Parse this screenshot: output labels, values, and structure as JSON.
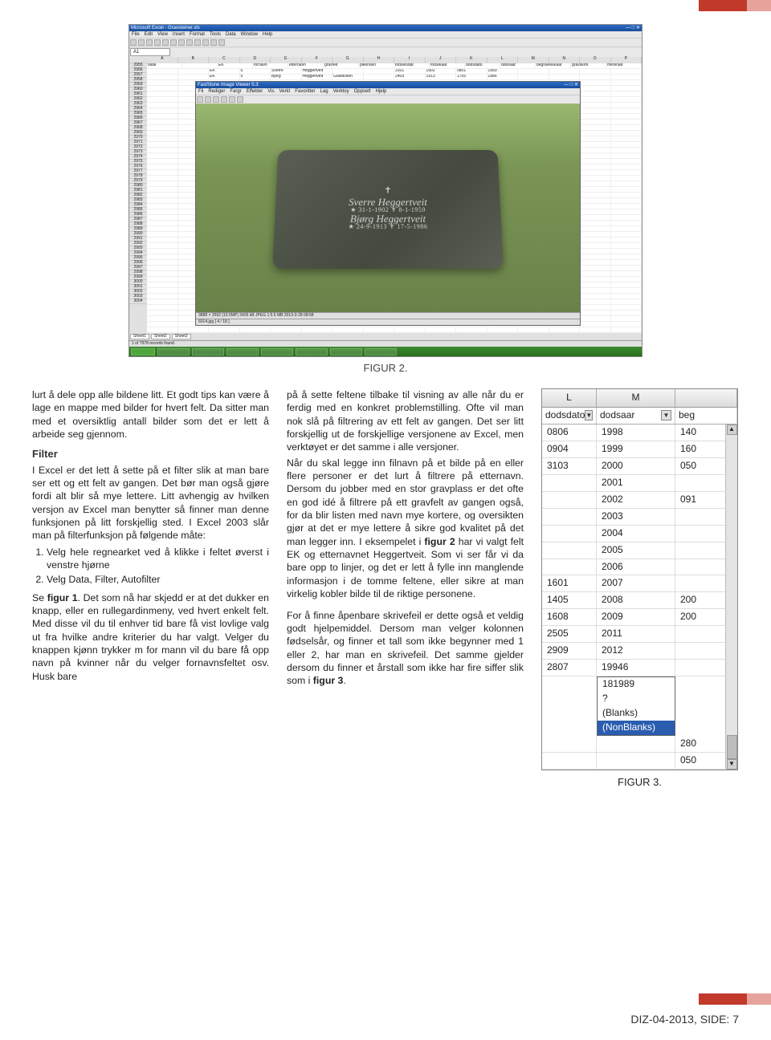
{
  "decor": {
    "color_main": "#c0392b",
    "color_light": "#e5a39c"
  },
  "figure2": {
    "caption": "FIGUR 2.",
    "excel_title": "Microsoft Excel - Gravsteiner.xls",
    "menu": [
      "File",
      "Edit",
      "View",
      "Insert",
      "Format",
      "Tools",
      "Data",
      "Window",
      "Help"
    ],
    "cellref": "A1",
    "cols": [
      "A",
      "B",
      "C",
      "D",
      "E",
      "F",
      "G",
      "H",
      "I",
      "J",
      "K",
      "L",
      "M",
      "N",
      "O",
      "P"
    ],
    "header_row": [
      "bilde",
      "",
      "EK",
      "fornavn",
      "etternavn",
      "gravfelt",
      "pikenavn",
      "fodselsdat",
      "fodselaar",
      "dodsdato",
      "dodsaar",
      "begravelseaar",
      "gravskrift",
      "merknad"
    ],
    "data_rows": [
      [
        "",
        "",
        "EK",
        "5",
        "Sverre",
        "Heggertveit",
        "",
        "",
        "3101",
        "1902",
        "0801",
        "1959",
        "",
        "",
        "",
        ""
      ],
      [
        "",
        "",
        "EK",
        "5",
        "Bjorg",
        "Heggertveit",
        "Gustavsen",
        "",
        "2409",
        "1913",
        "1705",
        "1986",
        "",
        "",
        "",
        ""
      ]
    ],
    "row_numbers_start": 2955,
    "viewer_title": "FastStone Image Viewer 5.3",
    "viewer_menu": [
      "Fil",
      "Rediger",
      "Fargr",
      "Effekter",
      "Vis",
      "Verkt",
      "Favoritter",
      "Lag",
      "Verktoy",
      "Oppsett",
      "Hjelp"
    ],
    "grave_name1": "Sverre Heggertveit",
    "grave_dates1": "★ 31-1-1902 ✝ 8-1-1959",
    "grave_name2": "Bjørg Heggertveit",
    "grave_dates2": "★ 24-9-1913 ✝ 17-5-1986",
    "viewer_status": "3888 × 2592 (10.5MP) 3426 kB JPEG 1:5.5 MB 2013-3-28 08:58",
    "filename": "6014.jpg [ 4 / 18 ]",
    "sheet_tabs": [
      "Sheet1",
      "Sheet2",
      "Sheet3"
    ],
    "records": "1 of 7978 records found"
  },
  "text": {
    "p1": "lurt å dele opp alle bildene litt. Et godt tips kan være å lage en mappe med bilder for hvert felt. Da sitter man med et oversiktlig antall bilder som det er lett å arbeide seg gjennom.",
    "filter_heading": "Filter",
    "p2": "I Excel er det lett å sette på et filter slik at man bare ser ett og ett felt av gangen. Det bør man også gjøre fordi alt blir så mye lettere. Litt avhengig av hvilken versjon av Excel man benytter så finner man denne funksjonen på litt forskjellig sted. I Excel 2003 slår man på filterfunksjon på følgende måte:",
    "step1": "Velg hele regnearket ved å klikke i feltet øverst i venstre hjørne",
    "step2": "Velg Data, Filter, Autofilter",
    "p3a": "Se ",
    "p3b": "figur 1",
    "p3c": ". Det som nå har skjedd er at det dukker en knapp, eller en rullegardinmeny, ved hvert enkelt felt. Med disse vil du til enhver tid bare få vist lovlige valg ut fra hvilke andre kriterier du har valgt. Velger du knappen kjønn trykker m for mann vil du bare få opp navn på kvinner når du velger fornavnsfeltet osv. Husk bare",
    "p4a": "på å sette feltene tilbake til visning av alle når du er ferdig med en konkret problemstilling. Ofte vil man nok slå på filtrering av ett felt av gangen. Det ser litt forskjellig ut de forskjellige versjonene av Excel, men verktøyet er det samme i alle versjoner.",
    "p4b": "Når du skal legge inn filnavn på et bilde på en eller flere personer er det lurt å filtrere på etternavn. Dersom du jobber med en stor gravplass er det ofte en god idé å filtrere på ett gravfelt av gangen også, for da blir listen med navn mye kortere, og oversikten gjør at det er mye lettere å sikre god kvalitet på det man legger inn. I eksempelet i ",
    "p4c": "figur 2",
    "p4d": " har vi valgt felt EK og etternavnet Heggertveit. Som vi ser får vi da bare opp to linjer, og det er lett å fylle inn manglende informasjon i de tomme feltene, eller sikre at man virkelig kobler bilde til de riktige personene.",
    "p5a": "For å finne åpenbare skrivefeil er dette også et veldig godt hjelpemiddel. Dersom man velger kolonnen fødselsår, og finner et tall som ikke begynner med 1 eller 2, har man en skrivefeil. Det samme gjelder dersom du finner et årstall som ikke har fire siffer slik som i ",
    "p5b": "figur 3",
    "p5c": "."
  },
  "figure3": {
    "caption": "FIGUR 3.",
    "col_letters": [
      "L",
      "M",
      ""
    ],
    "filter_labels": [
      "dodsdato",
      "dodsaar",
      "beg"
    ],
    "rows_top": [
      [
        "0806",
        "1998",
        "140"
      ],
      [
        "0904",
        "1999",
        "160"
      ],
      [
        "3103",
        "2000",
        "050"
      ],
      [
        "",
        "2001",
        ""
      ],
      [
        "",
        "2002",
        "091"
      ],
      [
        "",
        "2003",
        ""
      ],
      [
        "",
        "2004",
        ""
      ],
      [
        "",
        "2005",
        ""
      ],
      [
        "",
        "2006",
        ""
      ],
      [
        "1601",
        "2007",
        ""
      ],
      [
        "1405",
        "2008",
        "200"
      ],
      [
        "1608",
        "2009",
        "200"
      ],
      [
        "2505",
        "2011",
        ""
      ],
      [
        "2909",
        "2012",
        ""
      ],
      [
        "2807",
        "19946",
        ""
      ]
    ],
    "dropdown": [
      "181989",
      "?",
      "(Blanks)",
      "(NonBlanks)"
    ],
    "dropdown_selected_index": 3,
    "rows_bottom": [
      [
        "",
        "",
        "280"
      ],
      [
        "",
        "",
        "050"
      ]
    ]
  },
  "footer": "DIZ-04-2013, SIDE: 7"
}
